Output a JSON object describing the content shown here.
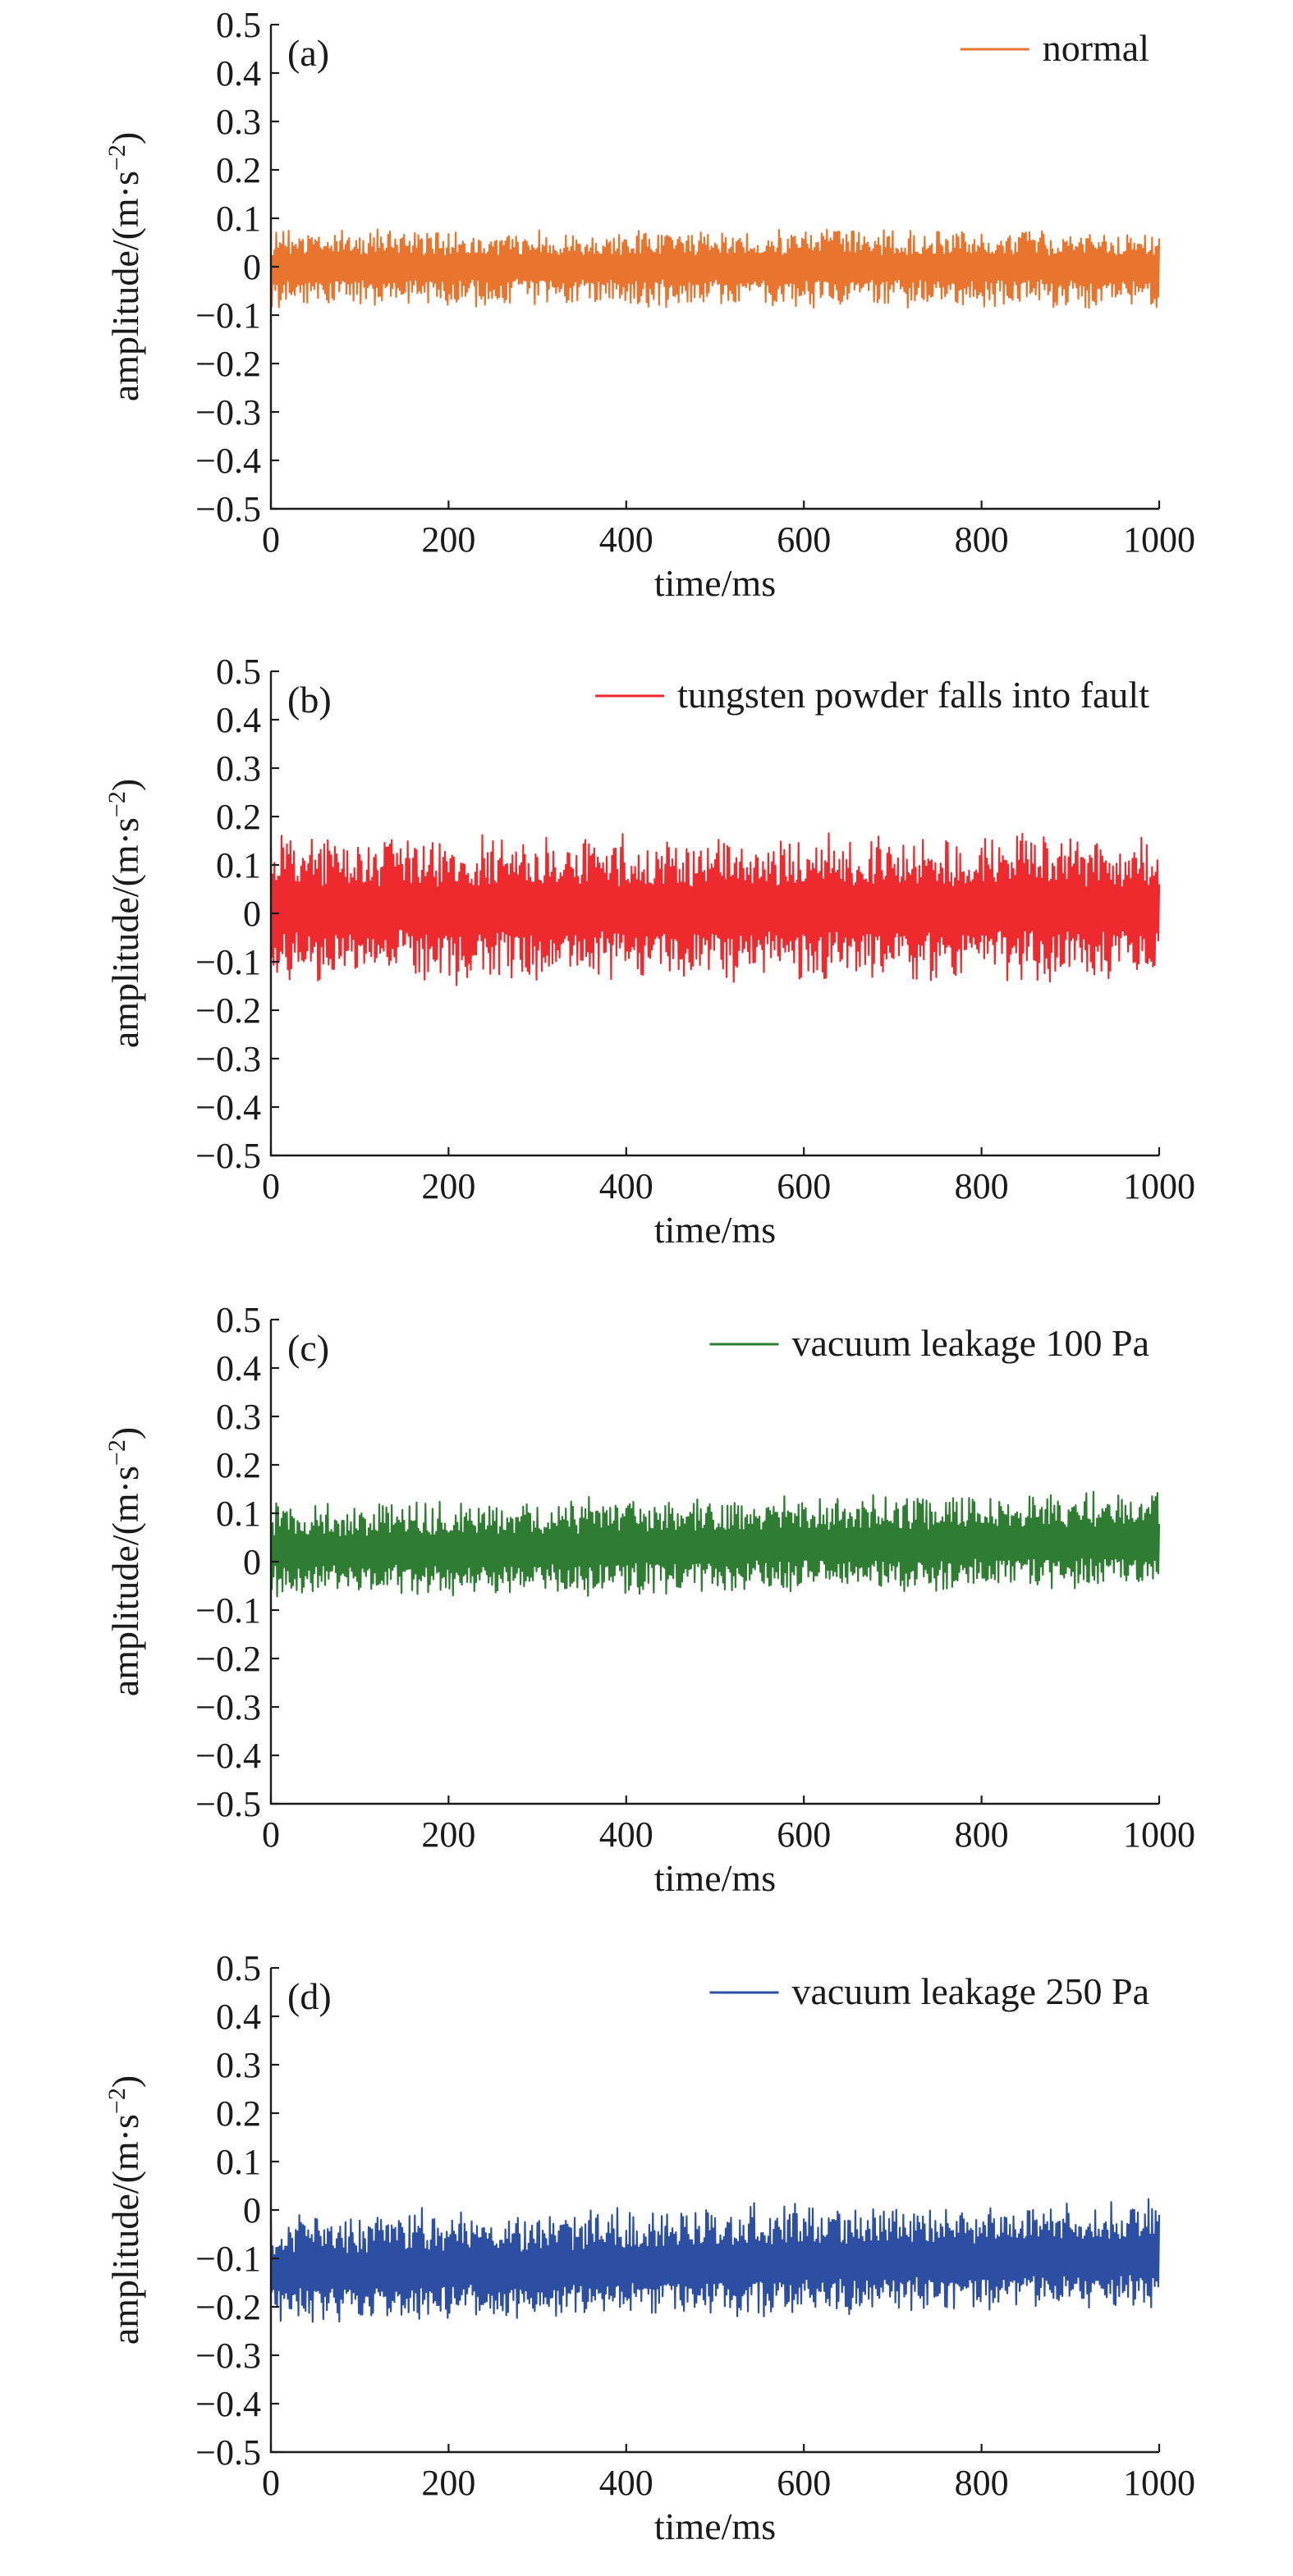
{
  "chart_data": [
    {
      "type": "line",
      "panel_label": "(a)",
      "xlabel": "time/ms",
      "ylabel_main": "amplitude/(m·s",
      "ylabel_exp": "−2",
      "ylabel_close": ")",
      "xlim": [
        0,
        1000
      ],
      "ylim": [
        -0.5,
        0.5
      ],
      "x_ticks": [
        0,
        200,
        400,
        600,
        800,
        1000
      ],
      "x_tick_labels": [
        "0",
        "200",
        "400",
        "600",
        "800",
        "1000"
      ],
      "y_ticks": [
        0.5,
        0.4,
        0.3,
        0.2,
        0.1,
        0,
        -0.1,
        -0.2,
        -0.3,
        -0.4,
        -0.5
      ],
      "y_tick_labels": [
        "0.5",
        "0.4",
        "0.3",
        "0.2",
        "0.1",
        "0",
        "−0.1",
        "−0.2",
        "−0.3",
        "−0.4",
        "−0.5"
      ],
      "legend_position": "top-right",
      "series": [
        {
          "name": "normal",
          "color": "#e8742e",
          "x_range": [
            0,
            1000
          ],
          "sample_count": 1000,
          "mean": 0.0,
          "min": -0.09,
          "max": 0.08
        }
      ]
    },
    {
      "type": "line",
      "panel_label": "(b)",
      "xlabel": "time/ms",
      "ylabel_main": "amplitude/(m·s",
      "ylabel_exp": "−2",
      "ylabel_close": ")",
      "xlim": [
        0,
        1000
      ],
      "ylim": [
        -0.5,
        0.5
      ],
      "x_ticks": [
        0,
        200,
        400,
        600,
        800,
        1000
      ],
      "x_tick_labels": [
        "0",
        "200",
        "400",
        "600",
        "800",
        "1000"
      ],
      "y_ticks": [
        0.5,
        0.4,
        0.3,
        0.2,
        0.1,
        0,
        -0.1,
        -0.2,
        -0.3,
        -0.4,
        -0.5
      ],
      "y_tick_labels": [
        "0.5",
        "0.4",
        "0.3",
        "0.2",
        "0.1",
        "0",
        "−0.1",
        "−0.2",
        "−0.3",
        "−0.4",
        "−0.5"
      ],
      "legend_position": "top-right",
      "series": [
        {
          "name": "tungsten powder falls into fault",
          "color": "#ee2a2f",
          "x_range": [
            0,
            1000
          ],
          "sample_count": 1000,
          "mean": 0.01,
          "min": -0.15,
          "max": 0.17
        }
      ]
    },
    {
      "type": "line",
      "panel_label": "(c)",
      "xlabel": "time/ms",
      "ylabel_main": "amplitude/(m·s",
      "ylabel_exp": "−2",
      "ylabel_close": ")",
      "xlim": [
        0,
        1000
      ],
      "ylim": [
        -0.5,
        0.5
      ],
      "x_ticks": [
        0,
        200,
        400,
        600,
        800,
        1000
      ],
      "x_tick_labels": [
        "0",
        "200",
        "400",
        "600",
        "800",
        "1000"
      ],
      "y_ticks": [
        0.5,
        0.4,
        0.3,
        0.2,
        0.1,
        0,
        -0.1,
        -0.2,
        -0.3,
        -0.4,
        -0.5
      ],
      "y_tick_labels": [
        "0.5",
        "0.4",
        "0.3",
        "0.2",
        "0.1",
        "0",
        "−0.1",
        "−0.2",
        "−0.3",
        "−0.4",
        "−0.5"
      ],
      "legend_position": "top-right",
      "series": [
        {
          "name": "vacuum leakage 100 Pa",
          "color": "#2e7d32",
          "x_range": [
            0,
            1000
          ],
          "sample_count": 1000,
          "mean_start": 0.02,
          "mean_end": 0.04,
          "min": -0.08,
          "max": 0.15
        }
      ]
    },
    {
      "type": "line",
      "panel_label": "(d)",
      "xlabel": "time/ms",
      "ylabel_main": "amplitude/(m·s",
      "ylabel_exp": "−2",
      "ylabel_close": ")",
      "xlim": [
        0,
        1000
      ],
      "ylim": [
        -0.5,
        0.5
      ],
      "x_ticks": [
        0,
        200,
        400,
        600,
        800,
        1000
      ],
      "x_tick_labels": [
        "0",
        "200",
        "400",
        "600",
        "800",
        "1000"
      ],
      "y_ticks": [
        0.5,
        0.4,
        0.3,
        0.2,
        0.1,
        0,
        -0.1,
        -0.2,
        -0.3,
        -0.4,
        -0.5
      ],
      "y_tick_labels": [
        "0.5",
        "0.4",
        "0.3",
        "0.2",
        "0.1",
        "0",
        "−0.1",
        "−0.2",
        "−0.3",
        "−0.4",
        "−0.5"
      ],
      "legend_position": "top-right",
      "series": [
        {
          "name": "vacuum leakage 250 Pa",
          "color": "#2d4fa3",
          "x_range": [
            0,
            1000
          ],
          "sample_count": 1000,
          "mean_start": -0.13,
          "mean_end": -0.1,
          "min": -0.24,
          "max": 0.03
        }
      ]
    }
  ]
}
